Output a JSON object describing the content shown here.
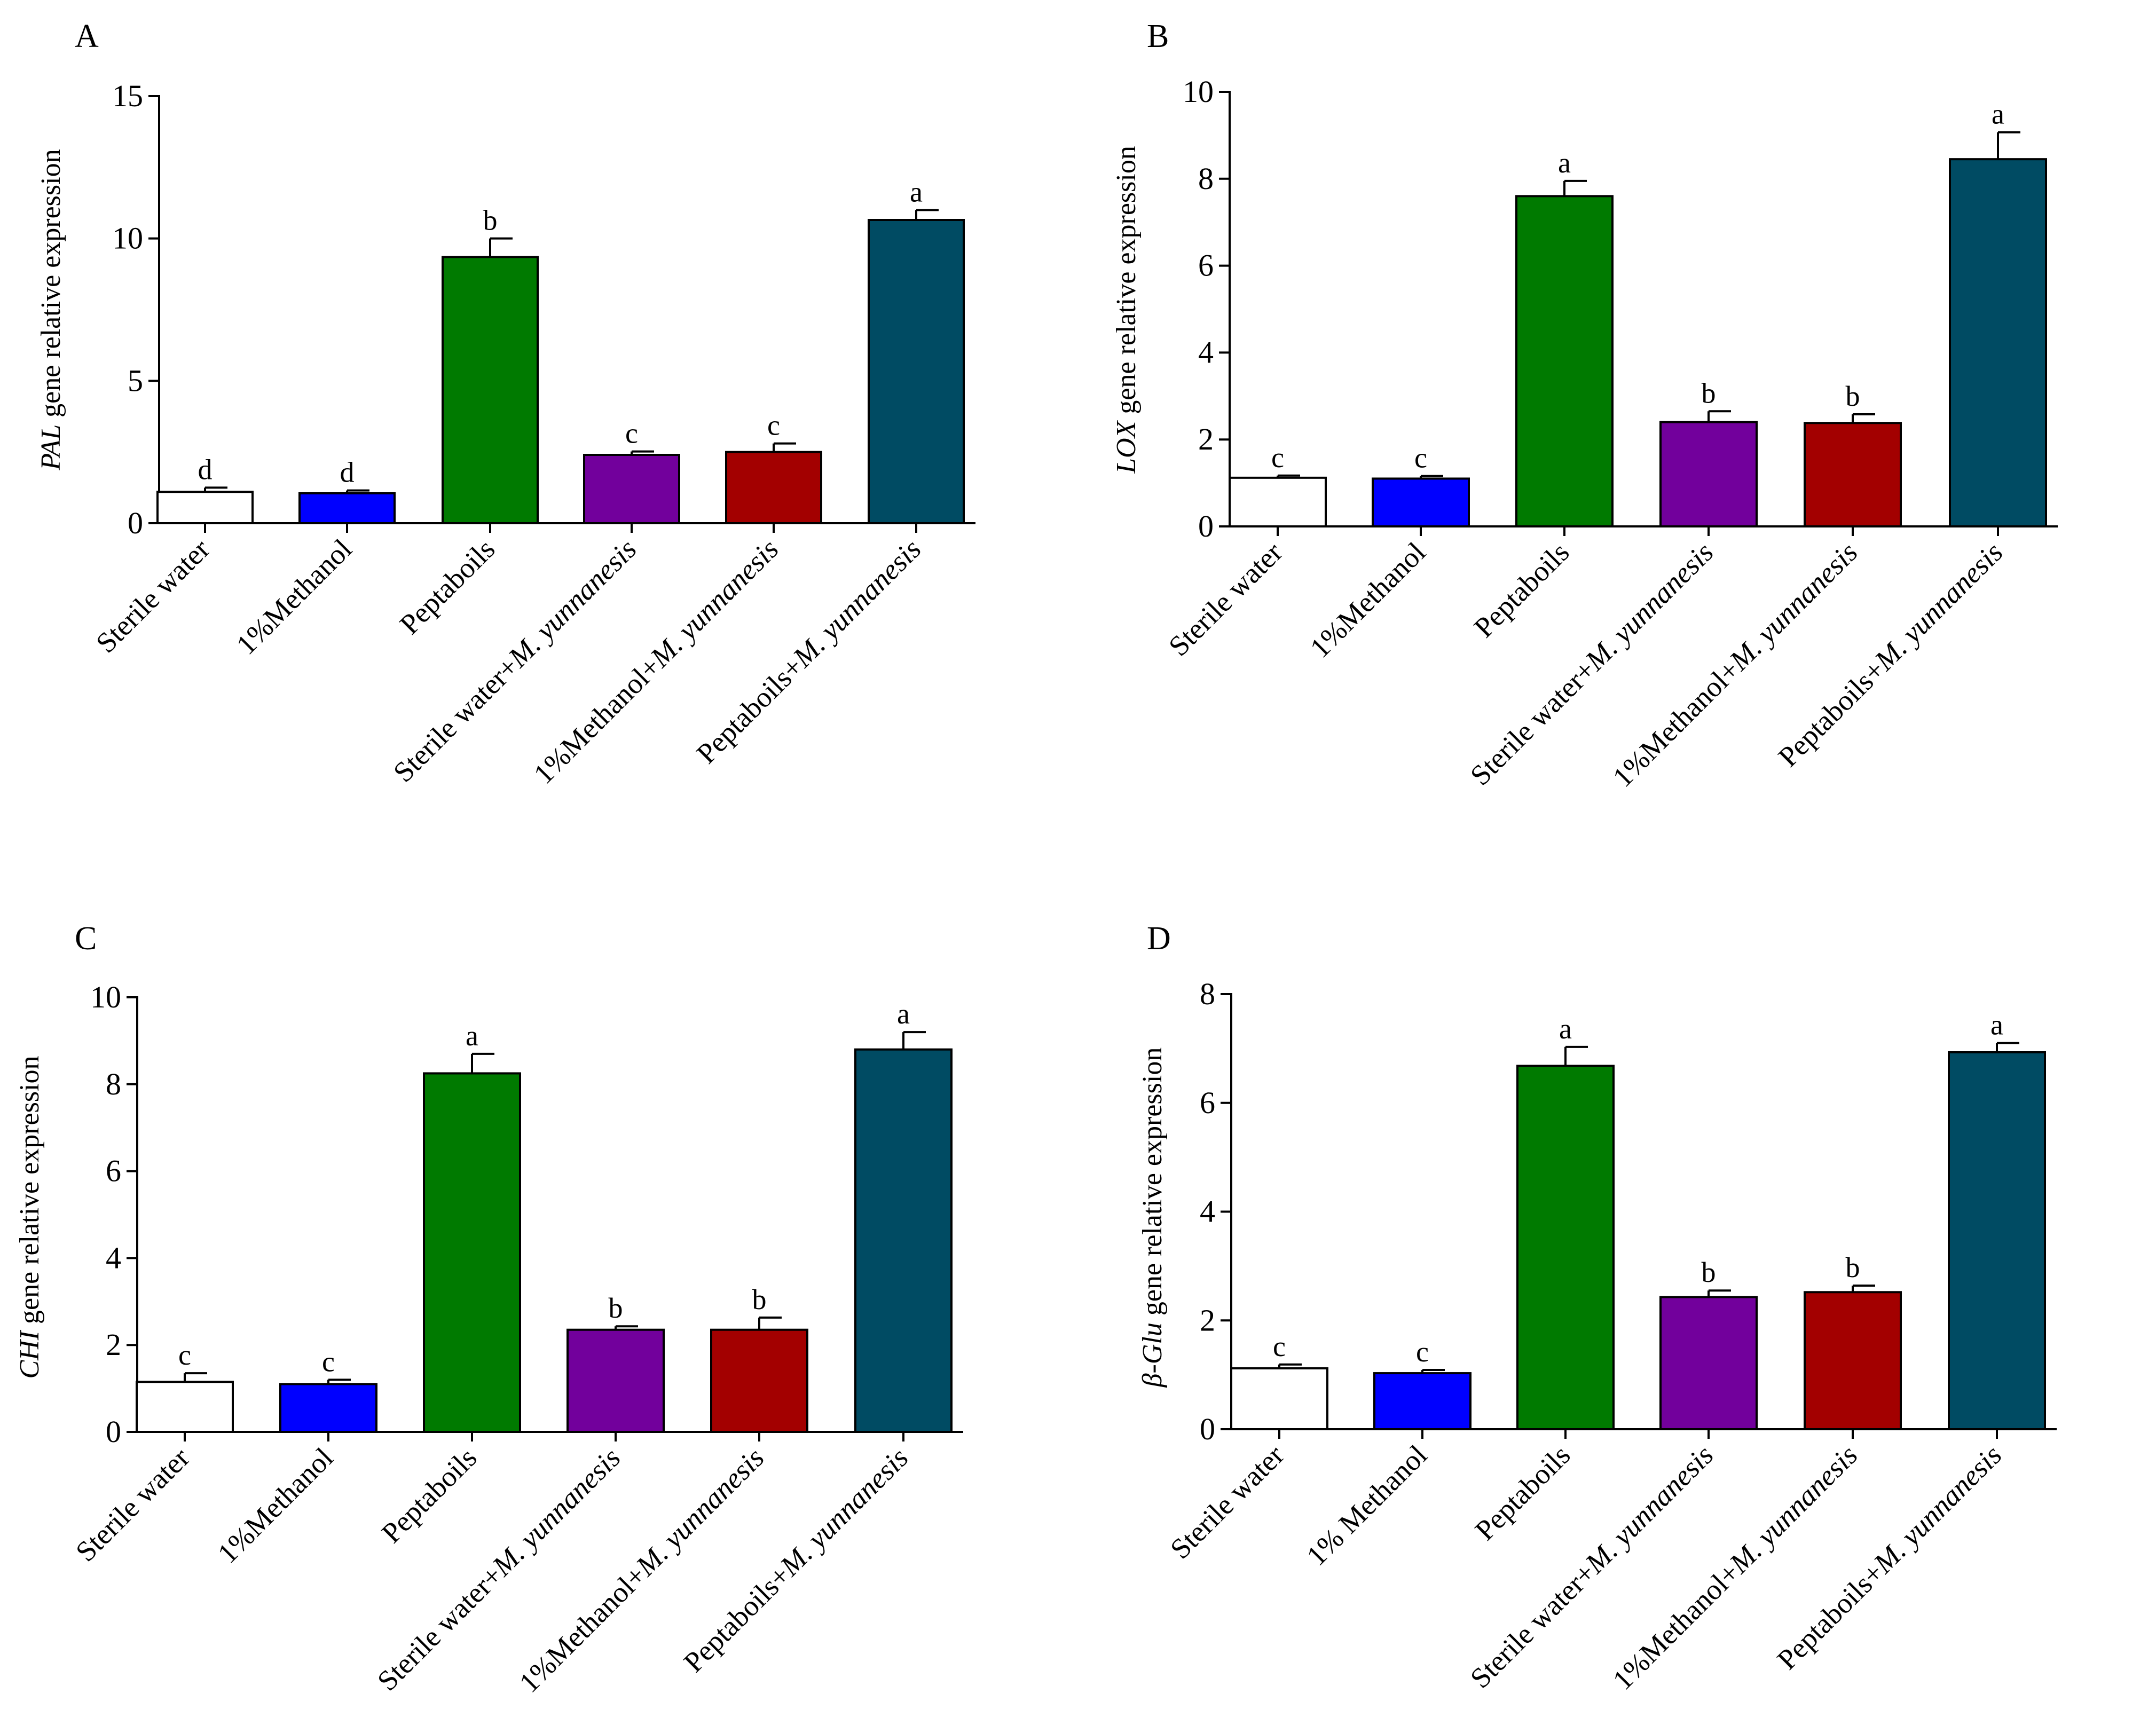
{
  "colors": {
    "sterile_water": "#ffffff",
    "methanol": "#0000ff",
    "peptaboils": "#007a00",
    "sterile_water_my": "#72009c",
    "methanol_my": "#a30000",
    "peptaboils_my": "#004b63"
  },
  "chart_data": [
    {
      "type": "bar",
      "panel": "A",
      "ylabel_gene": "PAL",
      "ylabel_rest": " gene relative expression",
      "ylim": [
        0,
        15
      ],
      "yticks": [
        0,
        5,
        10,
        15
      ],
      "categories": [
        {
          "text": "Sterile water",
          "italic": ""
        },
        {
          "text": "1%Methanol",
          "italic": ""
        },
        {
          "text": "Peptaboils",
          "italic": ""
        },
        {
          "text": "Sterile water+",
          "italic": "M. yunnanesis"
        },
        {
          "text": "1%Methanol+",
          "italic": "M. yunnanesis"
        },
        {
          "text": "Peptaboils+",
          "italic": "M. yunnanesis"
        }
      ],
      "values": [
        1.1,
        1.05,
        9.35,
        2.4,
        2.5,
        10.65
      ],
      "errors": [
        0.15,
        0.1,
        0.65,
        0.12,
        0.3,
        0.35
      ],
      "letters": [
        "d",
        "d",
        "b",
        "c",
        "c",
        "a"
      ]
    },
    {
      "type": "bar",
      "panel": "B",
      "ylabel_gene": "LOX",
      "ylabel_rest": " gene relative expression",
      "ylim": [
        0,
        10
      ],
      "yticks": [
        0,
        2,
        4,
        6,
        8,
        10
      ],
      "categories": [
        {
          "text": "Sterile water",
          "italic": ""
        },
        {
          "text": "1%Methanol",
          "italic": ""
        },
        {
          "text": "Peptaboils",
          "italic": ""
        },
        {
          "text": "Sterile water+",
          "italic": "M. yunnanesis"
        },
        {
          "text": "1%Methanol+",
          "italic": "M. yunnanesis"
        },
        {
          "text": "Peptaboils+",
          "italic": "M. yunnanesis"
        }
      ],
      "values": [
        1.12,
        1.1,
        7.6,
        2.4,
        2.38,
        8.45
      ],
      "errors": [
        0.05,
        0.06,
        0.35,
        0.25,
        0.2,
        0.62
      ],
      "letters": [
        "c",
        "c",
        "a",
        "b",
        "b",
        "a"
      ]
    },
    {
      "type": "bar",
      "panel": "C",
      "ylabel_gene": "CHI",
      "ylabel_rest": " gene relative expression",
      "ylim": [
        0,
        10
      ],
      "yticks": [
        0,
        2,
        4,
        6,
        8,
        10
      ],
      "categories": [
        {
          "text": "Sterile water",
          "italic": ""
        },
        {
          "text": "1%Methanol",
          "italic": ""
        },
        {
          "text": "Peptaboils",
          "italic": ""
        },
        {
          "text": "Sterile water+",
          "italic": "M. yunnanesis"
        },
        {
          "text": "1%Methanol+",
          "italic": "M. yunnanesis"
        },
        {
          "text": "Peptaboils+",
          "italic": "M. yunnanesis"
        }
      ],
      "values": [
        1.15,
        1.1,
        8.25,
        2.35,
        2.35,
        8.8
      ],
      "errors": [
        0.2,
        0.1,
        0.45,
        0.08,
        0.28,
        0.4
      ],
      "letters": [
        "c",
        "c",
        "a",
        "b",
        "b",
        "a"
      ]
    },
    {
      "type": "bar",
      "panel": "D",
      "ylabel_gene": "β-Glu",
      "ylabel_rest": " gene relative expression",
      "ylim": [
        0,
        8
      ],
      "yticks": [
        0,
        2,
        4,
        6,
        8
      ],
      "categories": [
        {
          "text": "Sterile water",
          "italic": ""
        },
        {
          "text": "1% Methanol",
          "italic": ""
        },
        {
          "text": "Peptaboils",
          "italic": ""
        },
        {
          "text": "Sterile water+",
          "italic": "M. yunnanesis"
        },
        {
          "text": "1%Methanol+",
          "italic": "M. yunnanesis"
        },
        {
          "text": "Peptaboils+",
          "italic": "M. yunnanesis"
        }
      ],
      "values": [
        1.12,
        1.03,
        6.68,
        2.43,
        2.52,
        6.93
      ],
      "errors": [
        0.07,
        0.06,
        0.35,
        0.12,
        0.12,
        0.17
      ],
      "letters": [
        "c",
        "c",
        "a",
        "b",
        "b",
        "a"
      ]
    }
  ]
}
